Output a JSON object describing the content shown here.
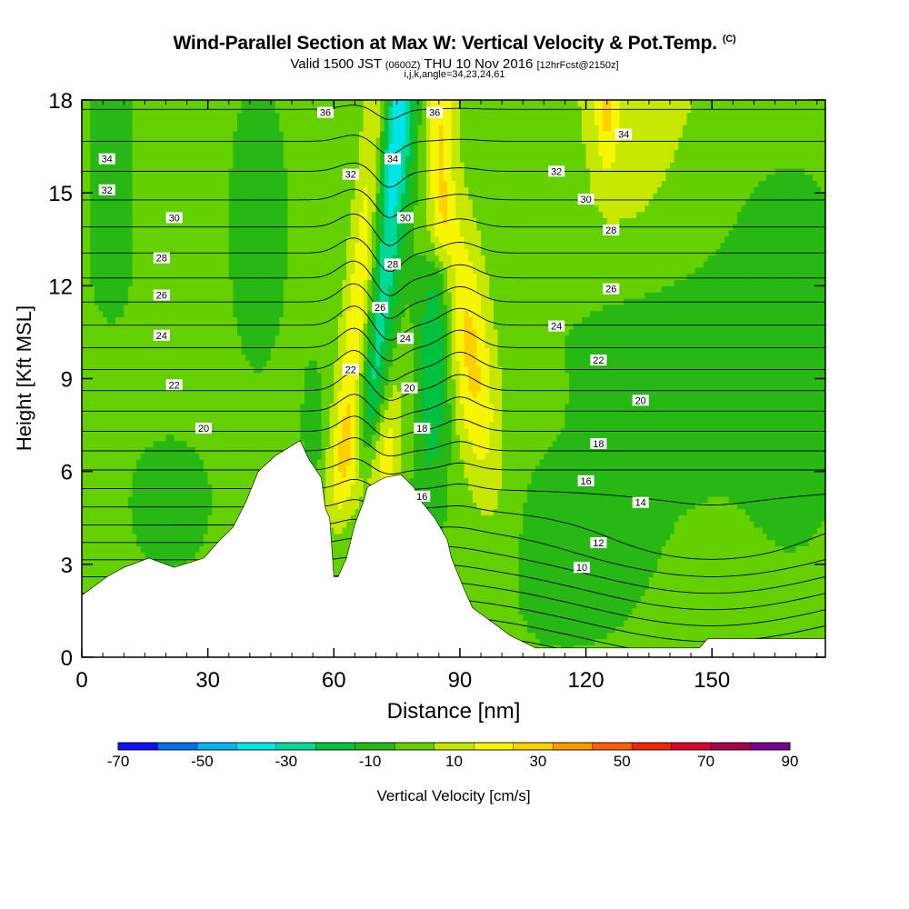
{
  "header": {
    "title": "Wind-Parallel Section at Max W: Vertical Velocity & Pot.Temp.",
    "copyright": "(C)",
    "valid_prefix": "Valid 1500 JST",
    "valid_z": "(0600Z)",
    "valid_date": "THU 10 Nov 2016",
    "forecast": "[12hrFcst@2150z]",
    "indices": "i,j,k,angle=34,23,24,61"
  },
  "chart_data": {
    "type": "heatmap",
    "xlabel": "Distance [nm]",
    "ylabel": "Height [Kft MSL]",
    "xlim": [
      0,
      177
    ],
    "ylim": [
      0,
      18
    ],
    "x_ticks": [
      0,
      30,
      60,
      90,
      120,
      150
    ],
    "y_ticks": [
      0,
      3,
      6,
      9,
      12,
      15,
      18
    ],
    "grid": false,
    "colorbar": {
      "label": "Vertical Velocity [cm/s]",
      "placement": "bottom",
      "bounds": [
        -70,
        -60,
        -50,
        -40,
        -30,
        -20,
        -10,
        0,
        10,
        20,
        30,
        40,
        50,
        60,
        70,
        80,
        90
      ],
      "tick_labels": [
        -70,
        -50,
        -30,
        -10,
        10,
        30,
        50,
        70,
        90
      ],
      "colors": [
        "#1010ff",
        "#0070ee",
        "#00b4f0",
        "#00e4e8",
        "#00d898",
        "#00c040",
        "#28b814",
        "#64d000",
        "#c6e800",
        "#f6f600",
        "#ffd000",
        "#ff9a00",
        "#ff5e00",
        "#f02800",
        "#dc0030",
        "#a8004a",
        "#78008c"
      ]
    },
    "terrain": [
      [
        0,
        2.0
      ],
      [
        3,
        2.3
      ],
      [
        6,
        2.6
      ],
      [
        10,
        2.9
      ],
      [
        16,
        3.2
      ],
      [
        22,
        2.9
      ],
      [
        29,
        3.2
      ],
      [
        33,
        3.8
      ],
      [
        36,
        4.2
      ],
      [
        39,
        5.0
      ],
      [
        42,
        6.0
      ],
      [
        46,
        6.5
      ],
      [
        52,
        7.0
      ],
      [
        54,
        6.4
      ],
      [
        57,
        5.8
      ],
      [
        58,
        4.8
      ],
      [
        59,
        4.5
      ],
      [
        60,
        2.6
      ],
      [
        61,
        2.6
      ],
      [
        63,
        3.2
      ],
      [
        65,
        4.3
      ],
      [
        67,
        5.0
      ],
      [
        68,
        5.5
      ],
      [
        72,
        5.8
      ],
      [
        76,
        5.9
      ],
      [
        79,
        5.5
      ],
      [
        81,
        5.0
      ],
      [
        84,
        4.5
      ],
      [
        87,
        3.8
      ],
      [
        88,
        3.2
      ],
      [
        91,
        2.2
      ],
      [
        93,
        1.6
      ],
      [
        96,
        1.3
      ],
      [
        99,
        1.0
      ],
      [
        102,
        0.7
      ],
      [
        105,
        0.5
      ],
      [
        108,
        0.3
      ],
      [
        147,
        0.3
      ],
      [
        149,
        0.6
      ],
      [
        155,
        0.6
      ],
      [
        177,
        0.6
      ]
    ],
    "theta_contour_labels": [
      {
        "v": "36",
        "x": 58,
        "y": 17.6
      },
      {
        "v": "36",
        "x": 84,
        "y": 17.6
      },
      {
        "v": "34",
        "x": 6,
        "y": 16.1
      },
      {
        "v": "34",
        "x": 74,
        "y": 16.1
      },
      {
        "v": "34",
        "x": 129,
        "y": 16.9
      },
      {
        "v": "32",
        "x": 6,
        "y": 15.1
      },
      {
        "v": "32",
        "x": 64,
        "y": 15.6
      },
      {
        "v": "32",
        "x": 113,
        "y": 15.7
      },
      {
        "v": "30",
        "x": 22,
        "y": 14.2
      },
      {
        "v": "30",
        "x": 77,
        "y": 14.2
      },
      {
        "v": "30",
        "x": 120,
        "y": 14.8
      },
      {
        "v": "28",
        "x": 19,
        "y": 12.9
      },
      {
        "v": "28",
        "x": 74,
        "y": 12.7
      },
      {
        "v": "28",
        "x": 126,
        "y": 13.8
      },
      {
        "v": "26",
        "x": 19,
        "y": 11.7
      },
      {
        "v": "26",
        "x": 71,
        "y": 11.3
      },
      {
        "v": "26",
        "x": 126,
        "y": 11.9
      },
      {
        "v": "24",
        "x": 19,
        "y": 10.4
      },
      {
        "v": "24",
        "x": 77,
        "y": 10.3
      },
      {
        "v": "24",
        "x": 113,
        "y": 10.7
      },
      {
        "v": "22",
        "x": 22,
        "y": 8.8
      },
      {
        "v": "22",
        "x": 64,
        "y": 9.3
      },
      {
        "v": "22",
        "x": 123,
        "y": 9.6
      },
      {
        "v": "20",
        "x": 29,
        "y": 7.4
      },
      {
        "v": "20",
        "x": 78,
        "y": 8.7
      },
      {
        "v": "20",
        "x": 133,
        "y": 8.3
      },
      {
        "v": "18",
        "x": 81,
        "y": 7.4
      },
      {
        "v": "18",
        "x": 123,
        "y": 6.9
      },
      {
        "v": "16",
        "x": 81,
        "y": 5.2
      },
      {
        "v": "16",
        "x": 120,
        "y": 5.7
      },
      {
        "v": "14",
        "x": 133,
        "y": 5.0
      },
      {
        "v": "12",
        "x": 123,
        "y": 3.7
      },
      {
        "v": "10",
        "x": 119,
        "y": 2.9
      }
    ]
  }
}
